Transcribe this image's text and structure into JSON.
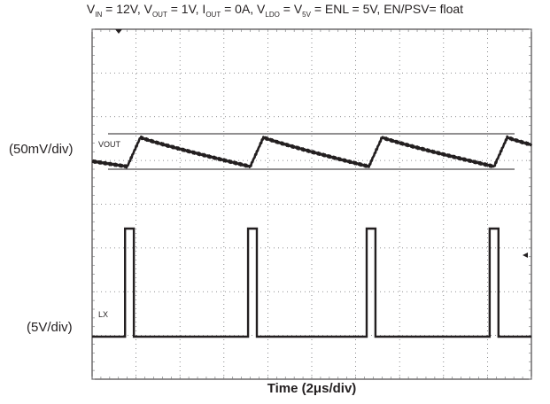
{
  "title": {
    "parts": [
      {
        "t": "V",
        "s": "IN"
      },
      {
        "t": " = 12V, V",
        "s": "OUT"
      },
      {
        "t": " = 1V, I",
        "s": "OUT"
      },
      {
        "t": " = 0A, V",
        "s": "LDO"
      },
      {
        "t": " = V",
        "s": "5V"
      },
      {
        "t": " =  ENL = 5V, EN/PSV= float"
      }
    ]
  },
  "channels": {
    "vout": {
      "trace_label": "VOUT",
      "scale_label": "(50mV/div)"
    },
    "lx": {
      "trace_label": "LX",
      "scale_label": "(5V/div)"
    }
  },
  "xlabel": "Time (2μs/div)",
  "chart_data": {
    "type": "line",
    "title": "VIN = 12V, VOUT = 1V, IOUT = 0A, VLDO = V5V =  ENL = 5V, EN/PSV= float",
    "xlabel": "Time (2μs/div)",
    "x_unit": "μs",
    "xlim": [
      0,
      20
    ],
    "grid": {
      "x_divisions": 10,
      "y_divisions": 8,
      "style": "dotted"
    },
    "series": [
      {
        "name": "VOUT",
        "scale": "50mV/div",
        "description_unit": "divisions",
        "switching_times_us": [
          1.6,
          7.2,
          12.6,
          18.3
        ],
        "ripple_peak_to_peak_div": 0.8
      },
      {
        "name": "LX",
        "scale": "5V/div",
        "pulse_start_us": [
          1.5,
          7.1,
          12.5,
          18.1
        ],
        "pulse_width_us": 0.4,
        "high_div": 2.5,
        "low_div": 0
      }
    ]
  },
  "colors": {
    "trace": "#231f20",
    "grid": "#6d6e71",
    "background": "#ffffff"
  }
}
